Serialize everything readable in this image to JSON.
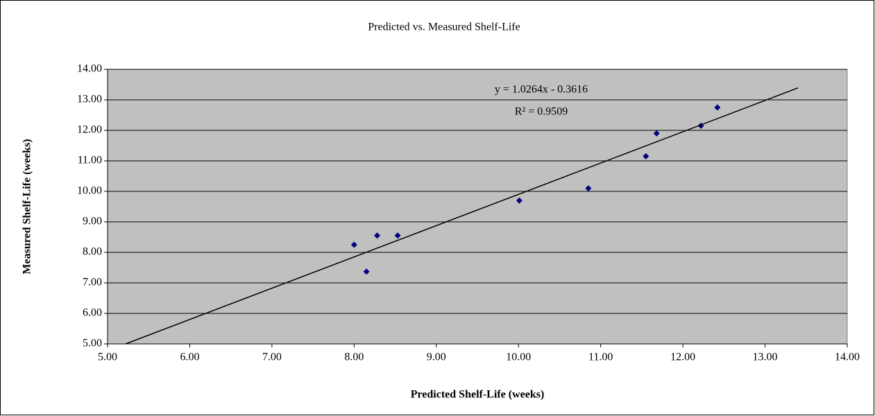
{
  "chart_data": {
    "type": "scatter",
    "title": "Predicted vs. Measured Shelf-Life",
    "x_label": "Predicted Shelf-Life (weeks)",
    "y_label": "Measured Shelf-Life (weeks)",
    "xlim": [
      5,
      14
    ],
    "ylim": [
      5,
      14
    ],
    "xticks": [
      {
        "value": 5,
        "label": "5.00"
      },
      {
        "value": 6,
        "label": "6.00"
      },
      {
        "value": 7,
        "label": "7.00"
      },
      {
        "value": 8,
        "label": "8.00"
      },
      {
        "value": 9,
        "label": "9.00"
      },
      {
        "value": 10,
        "label": "10.00"
      },
      {
        "value": 11,
        "label": "11.00"
      },
      {
        "value": 12,
        "label": "12.00"
      },
      {
        "value": 13,
        "label": "13.00"
      },
      {
        "value": 14,
        "label": "14.00"
      }
    ],
    "yticks": [
      {
        "value": 5,
        "label": "5.00"
      },
      {
        "value": 6,
        "label": "6.00"
      },
      {
        "value": 7,
        "label": "7.00"
      },
      {
        "value": 8,
        "label": "8.00"
      },
      {
        "value": 9,
        "label": "9.00"
      },
      {
        "value": 10,
        "label": "10.00"
      },
      {
        "value": 11,
        "label": "11.00"
      },
      {
        "value": 12,
        "label": "12.00"
      },
      {
        "value": 13,
        "label": "13.00"
      },
      {
        "value": 14,
        "label": "14.00"
      }
    ],
    "grid": true,
    "background": "#c0c0c0",
    "series": [
      {
        "color": "#000080",
        "x": [
          8.0,
          8.15,
          8.28,
          8.53,
          10.01,
          10.85,
          11.55,
          11.68,
          12.22,
          12.42
        ],
        "values": [
          8.25,
          7.37,
          8.55,
          8.55,
          9.7,
          10.1,
          11.15,
          11.9,
          12.15,
          12.75
        ]
      },
      {
        "color": "#000000",
        "line": true,
        "x": [
          5.22,
          13.4
        ],
        "values": [
          5.0,
          13.39
        ]
      }
    ],
    "annotations": [
      "y = 1.0264x - 0.3616",
      "R² = 0.9509"
    ]
  }
}
